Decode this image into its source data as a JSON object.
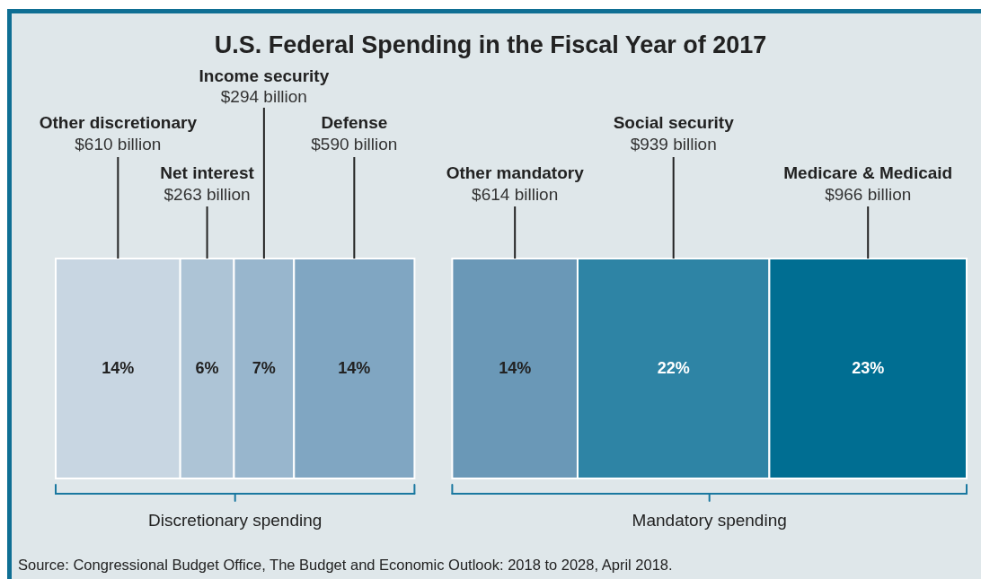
{
  "chart_data": {
    "type": "other",
    "title": "U.S. Federal Spending in the Fiscal Year of 2017",
    "categories": [
      "Other discretionary",
      "Net interest",
      "Income security",
      "Defense",
      "Other mandatory",
      "Social security",
      "Medicare & Medicaid"
    ],
    "series": [
      {
        "name": "Discretionary spending",
        "values": [
          610,
          263,
          294,
          590,
          null,
          null,
          null
        ],
        "value_labels": [
          "$610 billion",
          "$263 billion",
          "$294 billion",
          "$590 billion",
          null,
          null,
          null
        ]
      },
      {
        "name": "Mandatory spending",
        "values": [
          null,
          null,
          null,
          null,
          614,
          939,
          966
        ],
        "value_labels": [
          null,
          null,
          null,
          null,
          "$614 billion",
          "$939 billion",
          "$966 billion"
        ]
      }
    ],
    "colors": [
      "#c8d6e2",
      "#adc4d6",
      "#98b6cd",
      "#80a6c2",
      "#6a98b7",
      "#2e84a5",
      "#006e92"
    ],
    "annotations": [
      {
        "text": "14%",
        "x": "Other discretionary"
      },
      {
        "text": "6%",
        "x": "Net interest"
      },
      {
        "text": "7%",
        "x": "Income security"
      },
      {
        "text": "14%",
        "x": "Defense"
      },
      {
        "text": "14%",
        "x": "Other mandatory"
      },
      {
        "text": "22%",
        "x": "Social security"
      },
      {
        "text": "23%",
        "x": "Medicare & Medicaid"
      },
      "Source: Congressional Budget Office, The Budget and Economic Outlook: 2018 to 2028, April 2018."
    ]
  }
}
